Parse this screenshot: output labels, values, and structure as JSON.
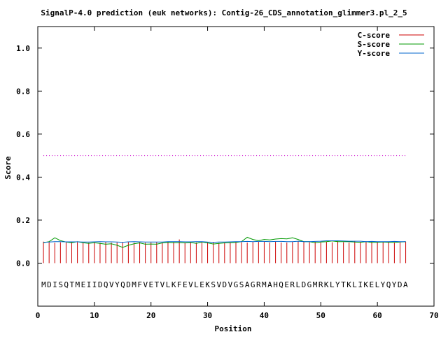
{
  "chart_data": {
    "type": "line",
    "title": "SignalP-4.0 prediction (euk networks): Contig-26_CDS_annotation_glimmer3.pl_2_5",
    "xlabel": "Position",
    "ylabel": "Score",
    "xlim": [
      0,
      70
    ],
    "ylim": [
      -0.2,
      1.1
    ],
    "x_ticks": [
      0,
      10,
      20,
      30,
      40,
      50,
      60,
      70
    ],
    "y_ticks": [
      0.0,
      0.2,
      0.4,
      0.6,
      0.8,
      1.0
    ],
    "x_tick_labels": [
      "0",
      "10",
      "20",
      "30",
      "40",
      "50",
      "60",
      "70"
    ],
    "y_tick_labels": [
      "0.0",
      "0.2",
      "0.4",
      "0.6",
      "0.8",
      "1.0"
    ],
    "legend_position": "top-right",
    "threshold": {
      "y": 0.5,
      "x_range": [
        1,
        65
      ],
      "color": "#cc00cc"
    },
    "sequence": "MDISQTMEIIDQVYQDMFVETVLKFEVLEKSVDVGSAGRMAHQERLDGMRKLYTKLIKELYQYDA",
    "sequence_y": -0.1,
    "x": [
      1,
      2,
      3,
      4,
      5,
      6,
      7,
      8,
      9,
      10,
      11,
      12,
      13,
      14,
      15,
      16,
      17,
      18,
      19,
      20,
      21,
      22,
      23,
      24,
      25,
      26,
      27,
      28,
      29,
      30,
      31,
      32,
      33,
      34,
      35,
      36,
      37,
      38,
      39,
      40,
      41,
      42,
      43,
      44,
      45,
      46,
      47,
      48,
      49,
      50,
      51,
      52,
      53,
      54,
      55,
      56,
      57,
      58,
      59,
      60,
      61,
      62,
      63,
      64,
      65
    ],
    "series": [
      {
        "name": "C-score",
        "color": "#cc0000",
        "style": "impulse",
        "values": [
          0.1,
          0.097,
          0.095,
          0.097,
          0.096,
          0.1,
          0.097,
          0.095,
          0.095,
          0.097,
          0.094,
          0.098,
          0.095,
          0.096,
          0.097,
          0.1,
          0.095,
          0.097,
          0.095,
          0.096,
          0.097,
          0.095,
          0.1,
          0.098,
          0.11,
          0.095,
          0.1,
          0.096,
          0.097,
          0.099,
          0.096,
          0.094,
          0.096,
          0.096,
          0.1,
          0.097,
          0.096,
          0.1,
          0.099,
          0.1,
          0.096,
          0.1,
          0.096,
          0.096,
          0.1,
          0.103,
          0.1,
          0.097,
          0.099,
          0.096,
          0.1,
          0.097,
          0.103,
          0.097,
          0.096,
          0.103,
          0.096,
          0.1,
          0.1,
          0.097,
          0.096,
          0.1,
          0.096,
          0.096,
          0.1
        ]
      },
      {
        "name": "S-score",
        "color": "#009900",
        "style": "line",
        "values": [
          0.095,
          0.1,
          0.118,
          0.105,
          0.098,
          0.095,
          0.1,
          0.095,
          0.092,
          0.095,
          0.092,
          0.088,
          0.09,
          0.083,
          0.073,
          0.083,
          0.09,
          0.094,
          0.088,
          0.089,
          0.088,
          0.094,
          0.096,
          0.095,
          0.095,
          0.094,
          0.096,
          0.092,
          0.098,
          0.094,
          0.089,
          0.092,
          0.094,
          0.095,
          0.096,
          0.1,
          0.12,
          0.11,
          0.105,
          0.11,
          0.108,
          0.112,
          0.114,
          0.113,
          0.118,
          0.11,
          0.1,
          0.1,
          0.095,
          0.098,
          0.1,
          0.103,
          0.1,
          0.1,
          0.1,
          0.098,
          0.097,
          0.1,
          0.096,
          0.097,
          0.098,
          0.097,
          0.096,
          0.098,
          0.1
        ]
      },
      {
        "name": "Y-score",
        "color": "#0066cc",
        "style": "line",
        "values": [
          0.097,
          0.098,
          0.1,
          0.1,
          0.099,
          0.099,
          0.099,
          0.098,
          0.098,
          0.099,
          0.1,
          0.099,
          0.099,
          0.098,
          0.097,
          0.099,
          0.1,
          0.099,
          0.098,
          0.098,
          0.098,
          0.098,
          0.1,
          0.1,
          0.1,
          0.099,
          0.099,
          0.1,
          0.1,
          0.098,
          0.097,
          0.098,
          0.098,
          0.099,
          0.1,
          0.1,
          0.101,
          0.1,
          0.101,
          0.101,
          0.1,
          0.101,
          0.101,
          0.1,
          0.1,
          0.102,
          0.1,
          0.1,
          0.101,
          0.102,
          0.104,
          0.104,
          0.104,
          0.103,
          0.102,
          0.102,
          0.102,
          0.1,
          0.101,
          0.1,
          0.1,
          0.1,
          0.101,
          0.1,
          0.1
        ]
      }
    ]
  }
}
